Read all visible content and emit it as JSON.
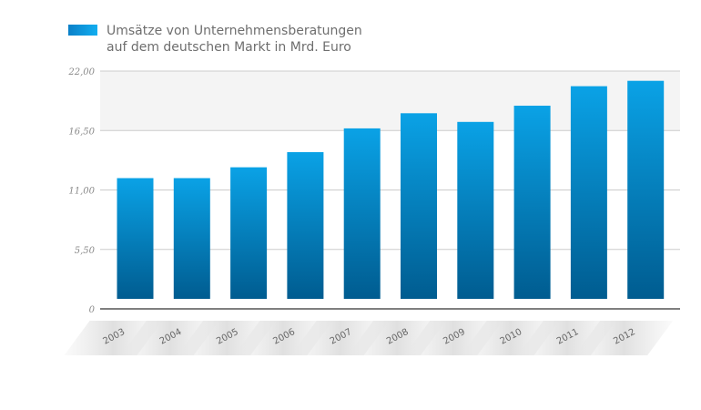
{
  "chart_data": {
    "type": "bar",
    "legend": {
      "position": "top-left",
      "lines": [
        "Umsätze von Unternehmensberatungen",
        "auf dem deutschen Markt in Mrd. Euro"
      ]
    },
    "categories": [
      "2003",
      "2004",
      "2005",
      "2006",
      "2007",
      "2008",
      "2009",
      "2010",
      "2011",
      "2012"
    ],
    "values": [
      12.1,
      12.1,
      13.1,
      14.5,
      16.7,
      18.1,
      17.3,
      18.8,
      20.6,
      21.1
    ],
    "ylim": [
      0,
      22
    ],
    "yticks": [
      "0",
      "5,50",
      "11,00",
      "16,50",
      "22,00"
    ],
    "ytick_values": [
      0,
      5.5,
      11,
      16.5,
      22
    ],
    "grid": true,
    "colors": {
      "bar_top": "#0aa2e6",
      "bar_bottom": "#005c90",
      "legend_swatch": "#0a9ee0",
      "plot_band": "#f4f4f4",
      "grid": "#cccccc",
      "axis": "#333333",
      "label_band": "#e6e6e6"
    }
  }
}
